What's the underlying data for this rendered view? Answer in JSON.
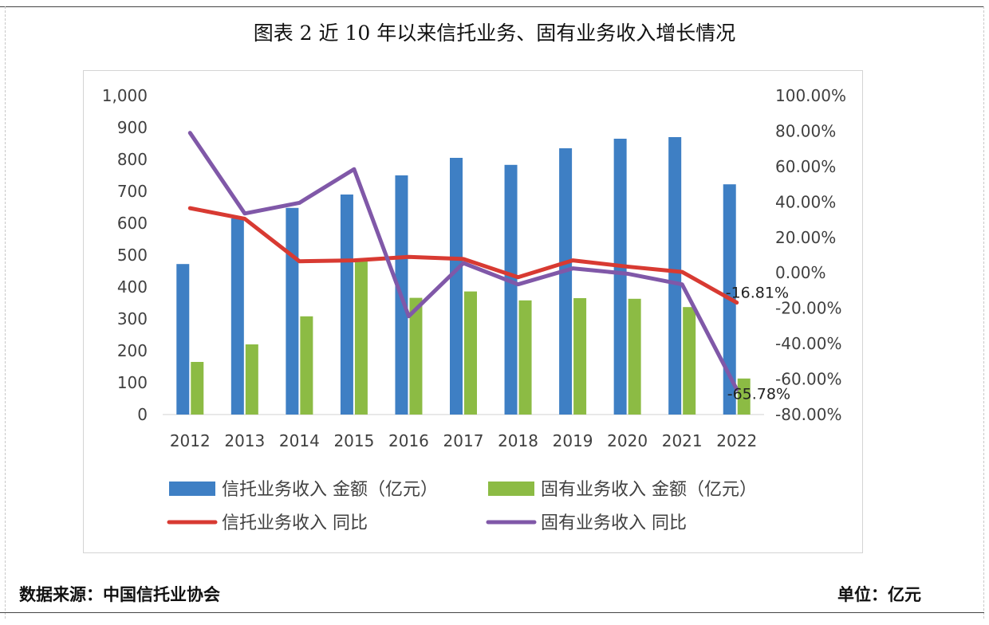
{
  "title": "图表 2  近 10 年以来信托业务、固有业务收入增长情况",
  "source": "数据来源：中国信托业协会",
  "unit": "单位：亿元",
  "colors": {
    "trust_bar": "#3e7fc4",
    "own_bar": "#8cbb44",
    "trust_line": "#d83a32",
    "own_line": "#8058a8"
  },
  "chart_data": {
    "type": "bar",
    "categories": [
      "2012",
      "2013",
      "2014",
      "2015",
      "2016",
      "2017",
      "2018",
      "2019",
      "2020",
      "2021",
      "2022"
    ],
    "series": [
      {
        "name": "信托业务收入 金额（亿元）",
        "kind": "bar",
        "axis": "left",
        "values": [
          472,
          615,
          648,
          690,
          750,
          805,
          783,
          835,
          865,
          870,
          722
        ]
      },
      {
        "name": "固有业务收入 金额（亿元）",
        "kind": "bar",
        "axis": "left",
        "values": [
          165,
          220,
          308,
          482,
          366,
          386,
          358,
          365,
          363,
          337,
          113
        ]
      },
      {
        "name": "信托业务收入 同比",
        "kind": "line",
        "axis": "right",
        "values": [
          36.5,
          30.5,
          6.5,
          7.0,
          9.0,
          7.8,
          -2.5,
          7.0,
          3.5,
          0.5,
          -16.81
        ]
      },
      {
        "name": "固有业务收入 同比",
        "kind": "line",
        "axis": "right",
        "values": [
          79.0,
          33.5,
          39.5,
          58.5,
          -24.5,
          5.5,
          -6.5,
          2.5,
          -0.5,
          -6.5,
          -65.78
        ]
      }
    ],
    "left_axis": {
      "min": 0,
      "max": 1000,
      "step": 100,
      "tick_labels": [
        "0",
        "100",
        "200",
        "300",
        "400",
        "500",
        "600",
        "700",
        "800",
        "900",
        "1,000"
      ]
    },
    "right_axis": {
      "min": -80,
      "max": 100,
      "step": 20,
      "tick_labels": [
        "-80.00%",
        "-60.00%",
        "-40.00%",
        "-20.00%",
        "0.00%",
        "20.00%",
        "40.00%",
        "60.00%",
        "80.00%",
        "100.00%"
      ]
    },
    "data_labels": {
      "trust_2022": "-16.81%",
      "own_2022": "-65.78%"
    },
    "legend": [
      {
        "label": "信托业务收入 金额（亿元）",
        "kind": "bar"
      },
      {
        "label": "固有业务收入 金额（亿元）",
        "kind": "bar"
      },
      {
        "label": "信托业务收入 同比",
        "kind": "line"
      },
      {
        "label": "固有业务收入 同比",
        "kind": "line"
      }
    ],
    "legend_position": "bottom",
    "grid": false
  }
}
